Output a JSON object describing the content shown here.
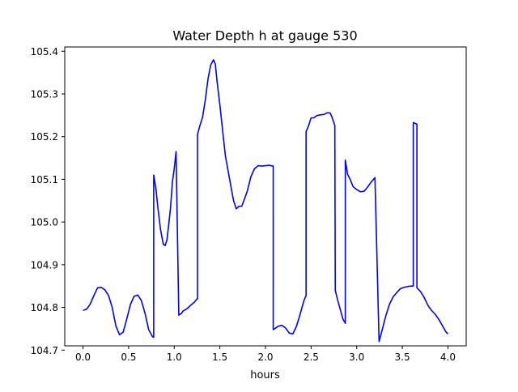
{
  "chart_data": {
    "type": "line",
    "title": "Water Depth h at gauge 530",
    "xlabel": "hours",
    "ylabel": "",
    "xlim": [
      -0.2,
      4.2
    ],
    "ylim": [
      104.71,
      105.41
    ],
    "xticks": [
      0.0,
      0.5,
      1.0,
      1.5,
      2.0,
      2.5,
      3.0,
      3.5,
      4.0
    ],
    "xtick_labels": [
      "0.0",
      "0.5",
      "1.0",
      "1.5",
      "2.0",
      "2.5",
      "3.0",
      "3.5",
      "4.0"
    ],
    "yticks": [
      104.7,
      104.8,
      104.9,
      105.0,
      105.1,
      105.2,
      105.3,
      105.4
    ],
    "ytick_labels": [
      "104.7",
      "104.8",
      "104.9",
      "105.0",
      "105.1",
      "105.2",
      "105.3",
      "105.4"
    ],
    "grid": false,
    "legend": false,
    "series": [
      {
        "color": "#0000ff",
        "x": [
          0.0,
          0.04,
          0.08,
          0.12,
          0.16,
          0.2,
          0.24,
          0.28,
          0.32,
          0.36,
          0.4,
          0.44,
          0.48,
          0.52,
          0.56,
          0.6,
          0.64,
          0.68,
          0.72,
          0.76,
          0.775,
          0.775,
          0.8,
          0.82,
          0.85,
          0.88,
          0.9,
          0.92,
          0.94,
          0.96,
          0.98,
          1.0,
          1.02,
          1.05,
          1.08,
          1.09,
          1.09,
          1.1,
          1.14,
          1.18,
          1.22,
          1.25,
          1.255,
          1.255,
          1.28,
          1.31,
          1.34,
          1.37,
          1.4,
          1.43,
          1.45,
          1.47,
          1.5,
          1.53,
          1.56,
          1.59,
          1.62,
          1.65,
          1.68,
          1.71,
          1.74,
          1.77,
          1.8,
          1.84,
          1.88,
          1.92,
          1.96,
          2.0,
          2.04,
          2.08,
          2.085,
          2.085,
          2.1,
          2.14,
          2.18,
          2.22,
          2.26,
          2.3,
          2.34,
          2.38,
          2.42,
          2.445,
          2.445,
          2.47,
          2.5,
          2.53,
          2.56,
          2.6,
          2.64,
          2.68,
          2.71,
          2.73,
          2.76,
          2.765,
          2.765,
          2.79,
          2.82,
          2.85,
          2.875,
          2.875,
          2.9,
          2.93,
          2.96,
          3.0,
          3.04,
          3.08,
          3.12,
          3.16,
          3.2,
          3.245,
          3.245,
          3.28,
          3.32,
          3.36,
          3.4,
          3.44,
          3.48,
          3.52,
          3.56,
          3.6,
          3.62,
          3.62,
          3.66,
          3.66,
          3.7,
          3.74,
          3.78,
          3.82,
          3.86,
          3.9,
          3.94,
          3.98,
          4.0
        ],
        "y": [
          104.793,
          104.796,
          104.808,
          104.828,
          104.846,
          104.847,
          104.841,
          104.828,
          104.8,
          104.757,
          104.736,
          104.742,
          104.773,
          104.807,
          104.826,
          104.829,
          104.816,
          104.786,
          104.748,
          104.732,
          104.73,
          105.11,
          105.077,
          105.035,
          104.982,
          104.948,
          104.945,
          104.958,
          104.995,
          105.035,
          105.094,
          105.125,
          105.165,
          104.782,
          104.786,
          104.79,
          104.79,
          104.792,
          104.797,
          104.805,
          104.812,
          104.82,
          104.82,
          105.205,
          105.225,
          105.245,
          105.285,
          105.335,
          105.368,
          105.38,
          105.37,
          105.328,
          105.275,
          105.215,
          105.156,
          105.12,
          105.085,
          105.05,
          105.031,
          105.037,
          105.037,
          105.054,
          105.072,
          105.106,
          105.125,
          105.132,
          105.131,
          105.132,
          105.133,
          105.131,
          105.131,
          104.748,
          104.75,
          104.756,
          104.758,
          104.752,
          104.74,
          104.738,
          104.756,
          104.784,
          104.815,
          104.828,
          105.212,
          105.224,
          105.244,
          105.244,
          105.249,
          105.251,
          105.252,
          105.256,
          105.255,
          105.245,
          105.226,
          104.84,
          104.84,
          104.818,
          104.795,
          104.772,
          104.763,
          105.145,
          105.112,
          105.099,
          105.083,
          105.076,
          105.071,
          105.072,
          105.082,
          105.094,
          105.104,
          104.72,
          104.72,
          104.748,
          104.781,
          104.808,
          104.825,
          104.835,
          104.844,
          104.847,
          104.849,
          104.85,
          104.85,
          105.233,
          105.229,
          104.846,
          104.837,
          104.823,
          104.805,
          104.793,
          104.784,
          104.772,
          104.757,
          104.742,
          104.738
        ]
      }
    ]
  }
}
